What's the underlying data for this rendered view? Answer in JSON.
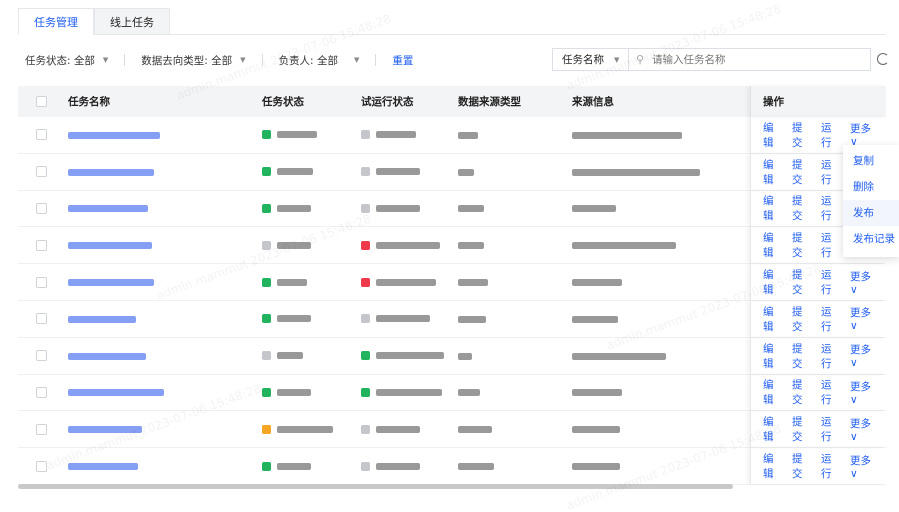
{
  "tabs": [
    {
      "label": "任务管理",
      "active": true
    },
    {
      "label": "线上任务",
      "active": false
    }
  ],
  "filters": {
    "status_label": "任务状态:",
    "status_value": "全部",
    "dest_label": "数据去向类型:",
    "dest_value": "全部",
    "owner_label": "负责人:",
    "owner_value": "全部",
    "reset": "重置"
  },
  "search": {
    "field": "任务名称",
    "placeholder": "请输入任务名称"
  },
  "watermark": "admin.mammut 2023-07-06 15:48:28",
  "columns": [
    "任务名称",
    "任务状态",
    "试运行状态",
    "数据来源类型",
    "来源信息",
    "操作"
  ],
  "actions": {
    "edit": "编辑",
    "submit": "提交",
    "run": "运行",
    "more": "更多"
  },
  "more_menu": [
    {
      "label": "复制"
    },
    {
      "label": "删除"
    },
    {
      "label": "发布",
      "hover": true
    },
    {
      "label": "发布记录"
    }
  ],
  "colors": {
    "accent": "#1e5cf0",
    "success": "#22b35e",
    "neutral": "#c4c6cc",
    "error": "#f0384b",
    "warning": "#f5a623"
  },
  "rows": [
    {
      "status_color": "#22b35e",
      "trial_color": "#c4c6cc"
    },
    {
      "status_color": "#22b35e",
      "trial_color": "#c4c6cc"
    },
    {
      "status_color": "#22b35e",
      "trial_color": "#c4c6cc"
    },
    {
      "status_color": "#c4c6cc",
      "trial_color": "#f0384b"
    },
    {
      "status_color": "#22b35e",
      "trial_color": "#f0384b"
    },
    {
      "status_color": "#22b35e",
      "trial_color": "#c4c6cc"
    },
    {
      "status_color": "#c4c6cc",
      "trial_color": "#22b35e"
    },
    {
      "status_color": "#22b35e",
      "trial_color": "#22b35e"
    },
    {
      "status_color": "#f5a623",
      "trial_color": "#c4c6cc"
    },
    {
      "status_color": "#22b35e",
      "trial_color": "#c4c6cc"
    }
  ]
}
